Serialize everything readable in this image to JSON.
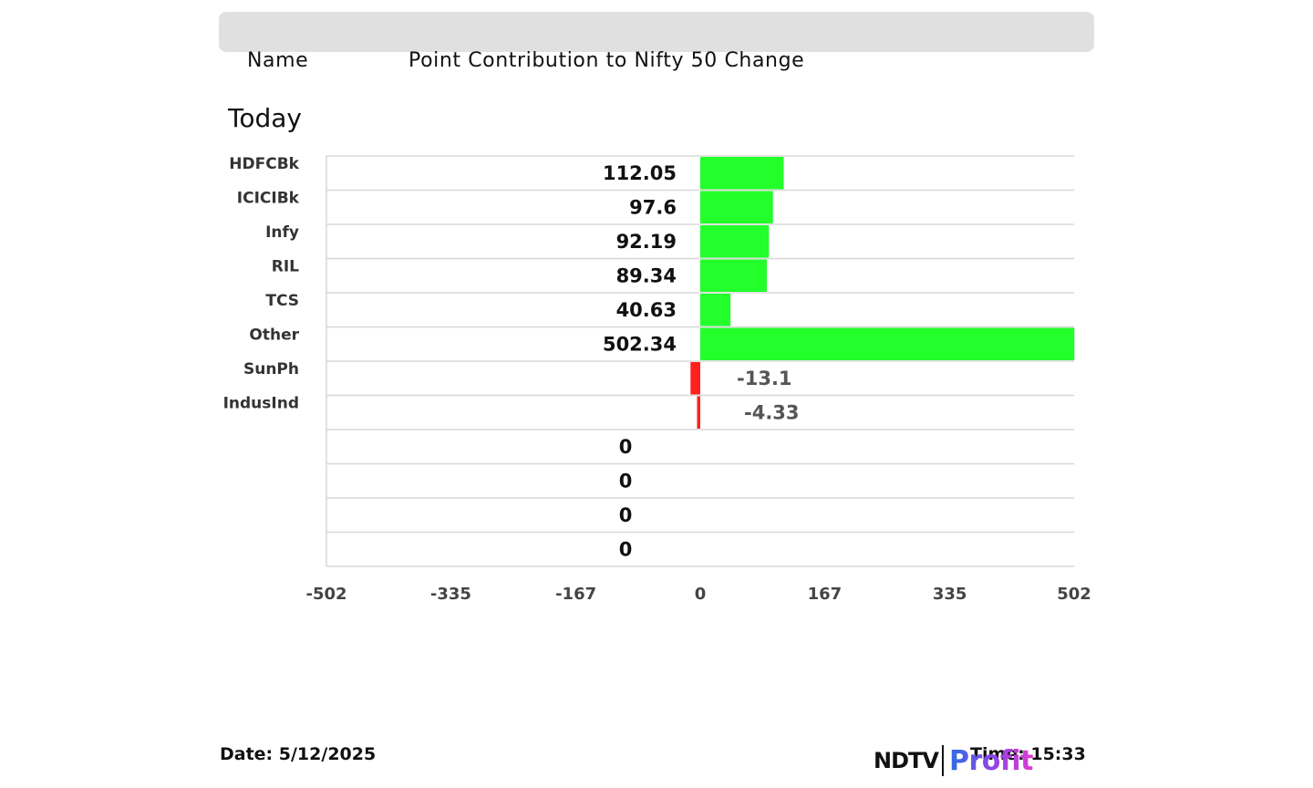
{
  "header": {
    "name_label": "Name",
    "title": "Point Contribution to Nifty 50 Change"
  },
  "period_label": "Today",
  "footer": {
    "date_text": "Date: 5/12/2025",
    "time_text": "Time: 15:33",
    "logo_ndtv": "NDTV",
    "logo_profit": "Profit"
  },
  "colors": {
    "positive": "#22ff2a",
    "negative": "#ff2020",
    "grid": "#d8d8d8",
    "negative_label": "#555555"
  },
  "chart_data": {
    "type": "bar",
    "orientation": "horizontal",
    "categories": [
      "HDFCBk",
      "ICICIBk",
      "Infy",
      "RIL",
      "TCS",
      "Other",
      "SunPh",
      "IndusInd",
      "",
      "",
      "",
      ""
    ],
    "values": [
      112.05,
      97.6,
      92.19,
      89.34,
      40.63,
      502.34,
      -13.1,
      -4.33,
      0,
      0,
      0,
      0
    ],
    "value_labels": [
      "112.05",
      "97.6",
      "92.19",
      "89.34",
      "40.63",
      "502.34",
      "-13.1",
      "-4.33",
      "0",
      "0",
      "0",
      "0"
    ],
    "xlim": [
      -502,
      502
    ],
    "xticks": [
      "-502",
      "-335",
      "-167",
      "0",
      "167",
      "335",
      "502"
    ],
    "xtick_values": [
      -502,
      -335,
      -167,
      0,
      167,
      335,
      502
    ],
    "grid": true
  }
}
